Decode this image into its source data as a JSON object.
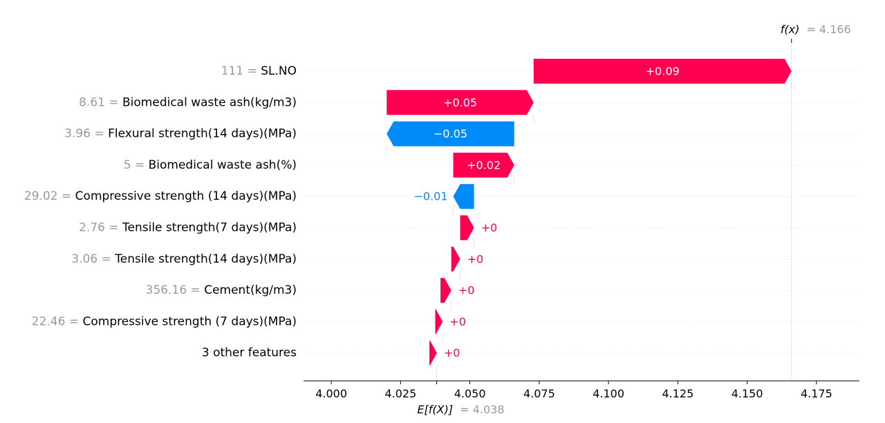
{
  "chart_data": {
    "type": "waterfall",
    "title": "",
    "xlabel": "",
    "ylabel": "",
    "xlim": [
      3.99,
      4.1905
    ],
    "xticks": [
      4.0,
      4.025,
      4.05,
      4.075,
      4.1,
      4.125,
      4.15,
      4.175
    ],
    "xtick_labels": [
      "4.000",
      "4.025",
      "4.050",
      "4.075",
      "4.100",
      "4.125",
      "4.150",
      "4.175"
    ],
    "base_value": 4.038,
    "base_label": "E[f(X)]",
    "base_value_label": "= 4.038",
    "output_value": 4.166,
    "output_label": "f(x)",
    "output_value_label": "= 4.166",
    "features": [
      {
        "value": "111",
        "eq": " = ",
        "name": "SL.NO",
        "start": 4.073,
        "end": 4.166,
        "label": "+0.09"
      },
      {
        "value": "8.61",
        "eq": " = ",
        "name": "Biomedical waste ash(kg/m3)",
        "start": 4.02,
        "end": 4.073,
        "label": "+0.05"
      },
      {
        "value": "3.96",
        "eq": " = ",
        "name": "Flexural strength(14 days)(MPa)",
        "start": 4.066,
        "end": 4.02,
        "label": "−0.05"
      },
      {
        "value": "5",
        "eq": " = ",
        "name": "Biomedical waste ash(%)",
        "start": 4.044,
        "end": 4.066,
        "label": "+0.02"
      },
      {
        "value": "29.02",
        "eq": " = ",
        "name": "Compressive strength (14 days)(MPa)",
        "start": 4.0515,
        "end": 4.044,
        "label": "−0.01"
      },
      {
        "value": "2.76",
        "eq": " = ",
        "name": "Tensile strength(7 days)(MPa)",
        "start": 4.0465,
        "end": 4.0515,
        "label": "+0"
      },
      {
        "value": "3.06",
        "eq": " = ",
        "name": "Tensile strength(14 days)(MPa)",
        "start": 4.0433,
        "end": 4.0465,
        "label": "+0"
      },
      {
        "value": "356.16",
        "eq": " = ",
        "name": "Cement(kg/m3)",
        "start": 4.0394,
        "end": 4.0433,
        "label": "+0"
      },
      {
        "value": "22.46",
        "eq": " = ",
        "name": "Compressive strength (7 days)(MPa)",
        "start": 4.0375,
        "end": 4.0402,
        "label": "+0"
      },
      {
        "value": "",
        "eq": "",
        "name": "3 other features",
        "start": 4.0354,
        "end": 4.0381,
        "label": "+0"
      }
    ],
    "colors": {
      "positive": "#ff0051",
      "negative": "#008bfb",
      "label_on_bar": "#ffffff",
      "feature_value": "#999999",
      "feature_name": "#000000",
      "axis": "#000000",
      "gridline": "#e0e0e0",
      "connector": "#bbbbbb"
    }
  }
}
